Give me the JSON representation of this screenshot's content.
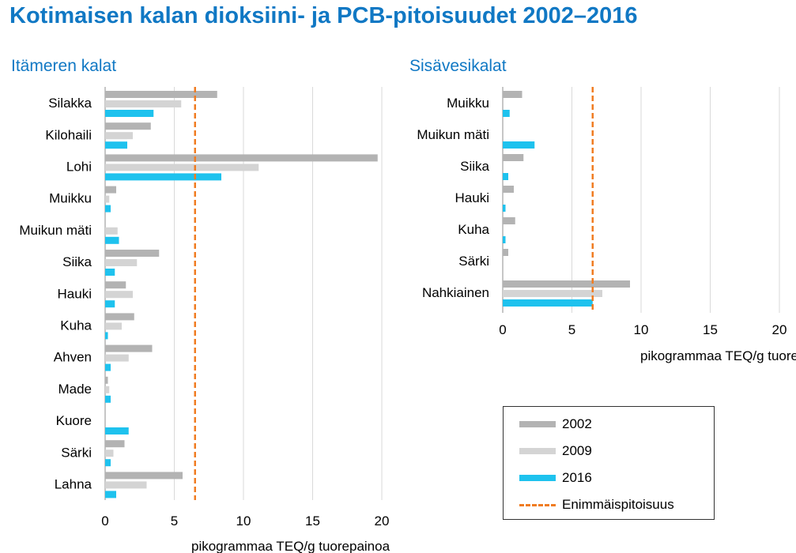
{
  "title": "Kotimaisen kalan dioksiini- ja PCB-pitoisuudet 2002–2016",
  "colors": {
    "2002": "#b3b3b3",
    "2009": "#d4d4d4",
    "2016": "#1ec2ee",
    "limit": "#f07c22",
    "title": "#1078c4"
  },
  "legend": {
    "items": [
      {
        "label": "2002",
        "color": "#b3b3b3",
        "kind": "bar"
      },
      {
        "label": "2009",
        "color": "#d4d4d4",
        "kind": "bar"
      },
      {
        "label": "2016",
        "color": "#1ec2ee",
        "kind": "bar"
      },
      {
        "label": "Enimmäispitoisuus",
        "color": "#f07c22",
        "kind": "dashed-line"
      }
    ]
  },
  "chart_data": [
    {
      "type": "bar",
      "orientation": "horizontal",
      "title": "Itämeren kalat",
      "xlabel": "pikogrammaa TEQ/g tuorepainoa",
      "xlim": [
        0,
        20
      ],
      "xticks": [
        0,
        5,
        10,
        15,
        20
      ],
      "grid": true,
      "limit_line": 6.5,
      "categories": [
        "Silakka",
        "Kilohaili",
        "Lohi",
        "Muikku",
        "Muikun mäti",
        "Siika",
        "Hauki",
        "Kuha",
        "Ahven",
        "Made",
        "Kuore",
        "Särki",
        "Lahna"
      ],
      "series": [
        {
          "name": "2002",
          "values": [
            8.1,
            3.3,
            19.7,
            0.8,
            null,
            3.9,
            1.5,
            2.1,
            3.4,
            0.2,
            null,
            1.4,
            5.6
          ]
        },
        {
          "name": "2009",
          "values": [
            5.5,
            2.0,
            11.1,
            0.3,
            0.9,
            2.3,
            2.0,
            1.2,
            1.7,
            0.3,
            null,
            0.6,
            3.0
          ]
        },
        {
          "name": "2016",
          "values": [
            3.5,
            1.6,
            8.4,
            0.4,
            1.0,
            0.7,
            0.7,
            0.2,
            0.4,
            0.4,
            1.7,
            0.4,
            0.8
          ]
        }
      ]
    },
    {
      "type": "bar",
      "orientation": "horizontal",
      "title": "Sisävesikalat",
      "xlabel": "pikogrammaa TEQ/g tuorepainoa",
      "xlim": [
        0,
        20
      ],
      "xticks": [
        0,
        5,
        10,
        15,
        20
      ],
      "grid": true,
      "limit_line": 6.5,
      "categories": [
        "Muikku",
        "Muikun mäti",
        "Siika",
        "Hauki",
        "Kuha",
        "Särki",
        "Nahkiainen"
      ],
      "series": [
        {
          "name": "2002",
          "values": [
            1.4,
            null,
            1.5,
            0.8,
            0.9,
            0.4,
            9.2
          ]
        },
        {
          "name": "2009",
          "values": [
            null,
            null,
            null,
            null,
            null,
            null,
            7.2
          ]
        },
        {
          "name": "2016",
          "values": [
            0.5,
            2.3,
            0.4,
            0.2,
            0.2,
            null,
            6.5
          ]
        }
      ]
    }
  ]
}
